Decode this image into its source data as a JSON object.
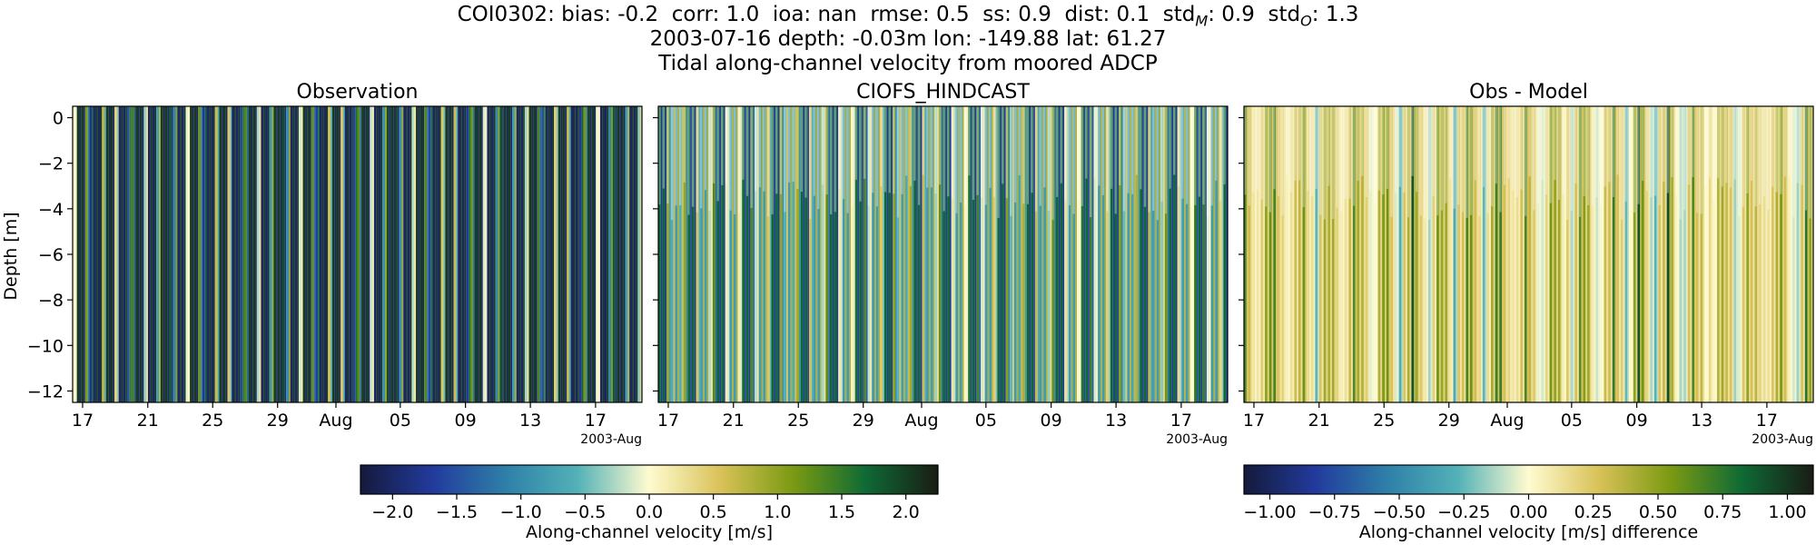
{
  "figure": {
    "title_line1_parts": {
      "station": "COI0302",
      "bias": "bias: -0.2",
      "corr": "corr: 1.0",
      "ioa": "ioa: nan",
      "rmse": "rmse: 0.5",
      "ss": "ss: 0.9",
      "dist": "dist: 0.1",
      "stdM_label": "std",
      "stdM_sub": "M",
      "stdM_value": ": 0.9",
      "stdO_label": "std",
      "stdO_sub": "O",
      "stdO_value": ": 1.3"
    },
    "title_line2": "2003-07-16 depth: -0.03m lon: -149.88 lat: 61.27",
    "title_line3": "Tidal along-channel velocity from moored ADCP",
    "ylabel": "Depth [m]"
  },
  "chart_data": [
    {
      "type": "heatmap",
      "title": "Observation",
      "xlabel": "",
      "ylabel": "Depth [m]",
      "x_ticks": [
        "17",
        "21",
        "25",
        "29",
        "Aug",
        "05",
        "09",
        "13",
        "17"
      ],
      "x_offset_label": "2003-Aug",
      "x_range": [
        "2003-07-16",
        "2003-08-20"
      ],
      "y_ticks": [
        0,
        -2,
        -4,
        -6,
        -8,
        -10,
        -12
      ],
      "ylim": [
        -12.5,
        0.5
      ],
      "colormap": "delta",
      "clim": [
        -2.25,
        2.25
      ],
      "pattern": "alternating tidal flood/ebb bands, full depth"
    },
    {
      "type": "heatmap",
      "title": "CIOFS_HINDCAST",
      "x_ticks": [
        "17",
        "21",
        "25",
        "29",
        "Aug",
        "05",
        "09",
        "13",
        "17"
      ],
      "x_offset_label": "2003-Aug",
      "x_range": [
        "2003-07-16",
        "2003-08-20"
      ],
      "ylim": [
        -12.5,
        0.5
      ],
      "colormap": "delta",
      "clim": [
        -2.25,
        2.25
      ],
      "pattern": "alternating tidal bands, weaker magnitude than observation"
    },
    {
      "type": "heatmap",
      "title": "Obs - Model",
      "x_ticks": [
        "17",
        "21",
        "25",
        "29",
        "Aug",
        "05",
        "09",
        "13",
        "17"
      ],
      "x_offset_label": "2003-Aug",
      "x_range": [
        "2003-07-16",
        "2003-08-20"
      ],
      "ylim": [
        -12.5,
        0.5
      ],
      "colormap": "delta",
      "clim": [
        -1.1,
        1.1
      ],
      "pattern": "difference field, mostly positive, strongest below -4 m"
    }
  ],
  "colorbars": [
    {
      "label": "Along-channel velocity [m/s]",
      "ticks": [
        "−2.0",
        "−1.5",
        "−1.0",
        "−0.5",
        "0.0",
        "0.5",
        "1.0",
        "1.5",
        "2.0"
      ],
      "tick_values": [
        -2.0,
        -1.5,
        -1.0,
        -0.5,
        0.0,
        0.5,
        1.0,
        1.5,
        2.0
      ],
      "range": [
        -2.25,
        2.25
      ]
    },
    {
      "label": "Along-channel velocity [m/s] difference",
      "ticks": [
        "−1.00",
        "−0.75",
        "−0.50",
        "−0.25",
        "0.00",
        "0.25",
        "0.50",
        "0.75",
        "1.00"
      ],
      "tick_values": [
        -1.0,
        -0.75,
        -0.5,
        -0.25,
        0.0,
        0.25,
        0.5,
        0.75,
        1.0
      ],
      "range": [
        -1.1,
        1.1
      ]
    }
  ],
  "colors": {
    "cmap_stops": [
      "#141a3c",
      "#223a9c",
      "#2e7fa8",
      "#52b1b8",
      "#fffbd0",
      "#d8c157",
      "#7a9a12",
      "#0f6a35",
      "#1a1c14"
    ]
  }
}
